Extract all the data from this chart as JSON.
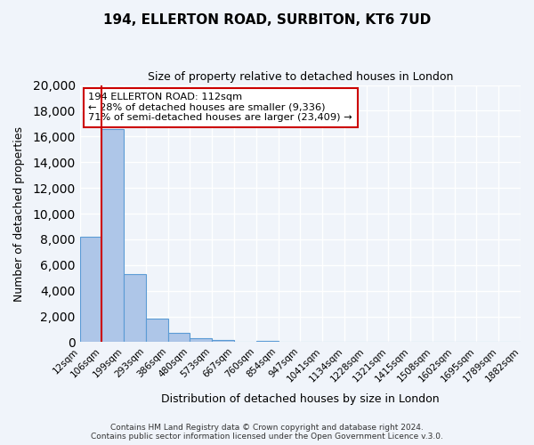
{
  "title": "194, ELLERTON ROAD, SURBITON, KT6 7UD",
  "subtitle": "Size of property relative to detached houses in London",
  "xlabel": "Distribution of detached houses by size in London",
  "ylabel": "Number of detached properties",
  "bin_labels": [
    "12sqm",
    "106sqm",
    "199sqm",
    "293sqm",
    "386sqm",
    "480sqm",
    "573sqm",
    "667sqm",
    "760sqm",
    "854sqm",
    "947sqm",
    "1041sqm",
    "1134sqm",
    "1228sqm",
    "1321sqm",
    "1415sqm",
    "1508sqm",
    "1602sqm",
    "1695sqm",
    "1789sqm",
    "1882sqm"
  ],
  "bar_heights": [
    8200,
    16600,
    5300,
    1800,
    750,
    300,
    150,
    0,
    100,
    0,
    0,
    0,
    0,
    0,
    0,
    0,
    0,
    0,
    0,
    0
  ],
  "bar_color": "#aec6e8",
  "bar_edge_color": "#5b9bd5",
  "vline_color": "#cc0000",
  "ylim": [
    0,
    20000
  ],
  "yticks": [
    0,
    2000,
    4000,
    6000,
    8000,
    10000,
    12000,
    14000,
    16000,
    18000,
    20000
  ],
  "annotation_title": "194 ELLERTON ROAD: 112sqm",
  "annotation_line1": "← 28% of detached houses are smaller (9,336)",
  "annotation_line2": "71% of semi-detached houses are larger (23,409) →",
  "annotation_box_color": "#ffffff",
  "annotation_box_edgecolor": "#cc0000",
  "footer1": "Contains HM Land Registry data © Crown copyright and database right 2024.",
  "footer2": "Contains public sector information licensed under the Open Government Licence v.3.0.",
  "background_color": "#f0f4fa",
  "grid_color": "#ffffff"
}
